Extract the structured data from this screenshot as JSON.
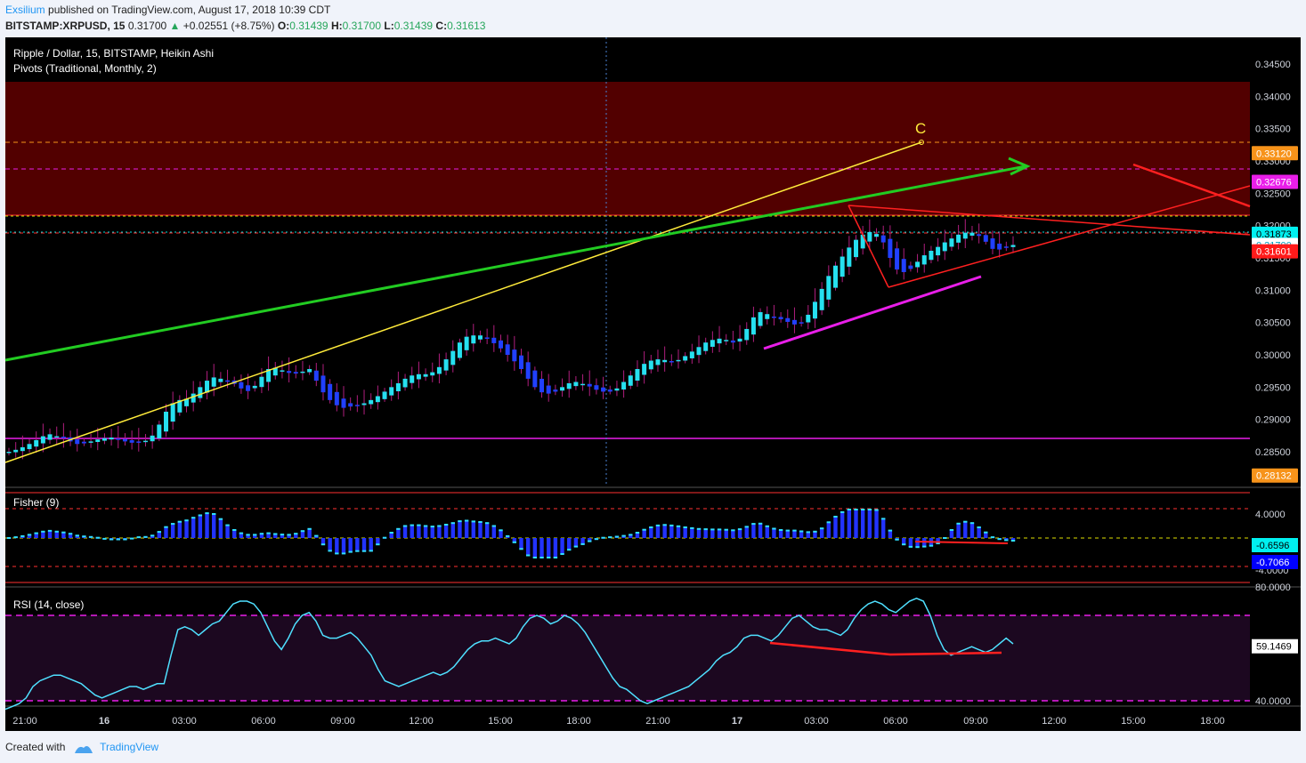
{
  "header": {
    "author": "Exsilium",
    "published_text": "published on TradingView.com, August 17, 2018 10:39 CDT",
    "symbol": "BITSTAMP:XRPUSD, 15",
    "last": "0.31700",
    "change": "+0.02551 (+8.75%)",
    "open_label": "O:",
    "open": "0.31439",
    "high_label": "H:",
    "high": "0.31700",
    "low_label": "L:",
    "low": "0.31439",
    "close_label": "C:",
    "close": "0.31613"
  },
  "footer": {
    "created_with": "Created with",
    "brand": "TradingView"
  },
  "chart_data": {
    "type": "candlestick",
    "title": "Ripple / Dollar, 15, BITSTAMP, Heikin Ashi",
    "indicator_label": "Pivots (Traditional, Monthly, 2)",
    "price_axis": {
      "ticks": [
        "0.34500",
        "0.34000",
        "0.33500",
        "0.33000",
        "0.32500",
        "0.32000",
        "0.31500",
        "0.31000",
        "0.30500",
        "0.30000",
        "0.29500",
        "0.29000",
        "0.28500"
      ],
      "range": [
        0.2775,
        0.3485
      ]
    },
    "price_tags": [
      {
        "value": "0.33120",
        "color": "#f7931a",
        "text_color": "#ffffff"
      },
      {
        "value": "0.32676",
        "color": "#e91ee9",
        "text_color": "#ffffff"
      },
      {
        "value": "0.31873",
        "color": "#00f0f0",
        "text_color": "#000000"
      },
      {
        "value": "0.31700",
        "color": "#ffffff",
        "text_color": "#00a0c0"
      },
      {
        "value": "0.31601",
        "color": "#ff1a1a",
        "text_color": "#ffffff"
      },
      {
        "value": "0.28132",
        "color": "#f7931a",
        "text_color": "#ffffff"
      }
    ],
    "time_axis": [
      "21:00",
      "16",
      "03:00",
      "06:00",
      "09:00",
      "12:00",
      "15:00",
      "18:00",
      "21:00",
      "17",
      "03:00",
      "06:00",
      "09:00",
      "12:00",
      "15:00",
      "18:00"
    ],
    "annotation_label": "C",
    "heikin_ashi_close": [
      0.285,
      0.2853,
      0.2857,
      0.2862,
      0.2868,
      0.2874,
      0.2877,
      0.2874,
      0.2871,
      0.2866,
      0.2862,
      0.2863,
      0.2866,
      0.2869,
      0.2871,
      0.2872,
      0.2869,
      0.2866,
      0.2864,
      0.2865,
      0.2867,
      0.2875,
      0.2892,
      0.2912,
      0.2925,
      0.293,
      0.2932,
      0.294,
      0.295,
      0.296,
      0.2965,
      0.2963,
      0.296,
      0.2955,
      0.2948,
      0.2944,
      0.2952,
      0.2966,
      0.2978,
      0.298,
      0.2976,
      0.2972,
      0.2971,
      0.2974,
      0.2978,
      0.296,
      0.2942,
      0.293,
      0.2922,
      0.2918,
      0.292,
      0.2922,
      0.2925,
      0.293,
      0.2936,
      0.2943,
      0.295,
      0.2956,
      0.2963,
      0.2968,
      0.297,
      0.297,
      0.2973,
      0.2981,
      0.2993,
      0.3006,
      0.3019,
      0.3028,
      0.303,
      0.303,
      0.3026,
      0.3018,
      0.301,
      0.3,
      0.299,
      0.2978,
      0.2963,
      0.295,
      0.2942,
      0.294,
      0.2943,
      0.295,
      0.2956,
      0.2958,
      0.2955,
      0.2951,
      0.2946,
      0.2943,
      0.2943,
      0.2948,
      0.2958,
      0.2968,
      0.2978,
      0.2986,
      0.2991,
      0.2993,
      0.2992,
      0.299,
      0.2992,
      0.2998,
      0.3005,
      0.3012,
      0.3019,
      0.3023,
      0.3025,
      0.3023,
      0.3019,
      0.3025,
      0.304,
      0.3058,
      0.3066,
      0.3063,
      0.3058,
      0.3055,
      0.3051,
      0.3047,
      0.305,
      0.3062,
      0.3082,
      0.3102,
      0.3122,
      0.3138,
      0.3152,
      0.3166,
      0.3178,
      0.3186,
      0.319,
      0.3187,
      0.3174,
      0.315,
      0.3132,
      0.3128,
      0.3133,
      0.3144,
      0.3154,
      0.3161,
      0.3167,
      0.3174,
      0.318,
      0.3186,
      0.3189,
      0.3189,
      0.3184,
      0.3175,
      0.3164,
      0.3163,
      0.3166,
      0.317
    ],
    "fisher": {
      "label": "Fisher (9)",
      "ticks": [
        "4.0000",
        "-4.0000"
      ],
      "tags": [
        {
          "value": "-0.6596",
          "color": "#00f0f0"
        },
        {
          "value": "-0.7066",
          "color": "#0000ff"
        }
      ]
    },
    "rsi": {
      "label": "RSI (14, close)",
      "ticks": [
        "80.0000",
        "40.0000"
      ],
      "tag": "59.1469",
      "values": [
        37,
        38,
        39,
        41,
        45,
        47,
        48,
        49,
        49,
        48,
        47,
        46,
        44,
        42,
        41,
        42,
        43,
        44,
        45,
        45,
        44,
        45,
        46,
        46,
        56,
        65,
        66,
        65,
        63,
        65,
        67,
        68,
        71,
        74,
        75,
        75,
        74,
        71,
        66,
        61,
        58,
        62,
        67,
        70,
        71,
        68,
        63,
        62,
        62,
        63,
        64,
        62,
        59,
        56,
        51,
        47,
        46,
        45,
        46,
        47,
        48,
        49,
        50,
        49,
        50,
        52,
        55,
        58,
        60,
        61,
        61,
        62,
        61,
        60,
        62,
        66,
        69,
        70,
        69,
        67,
        68,
        70,
        69,
        67,
        64,
        60,
        56,
        52,
        48,
        45,
        44,
        42,
        40,
        39,
        40,
        41,
        42,
        43,
        44,
        45,
        47,
        49,
        51,
        54,
        56,
        57,
        59,
        62,
        63,
        63,
        62,
        61,
        63,
        66,
        69,
        70,
        68,
        66,
        65,
        65,
        64,
        63,
        65,
        69,
        72,
        74,
        75,
        74,
        72,
        71,
        73,
        75,
        76,
        75,
        70,
        63,
        58,
        56,
        57,
        58,
        59,
        58,
        57,
        58,
        60,
        62,
        60
      ]
    }
  }
}
